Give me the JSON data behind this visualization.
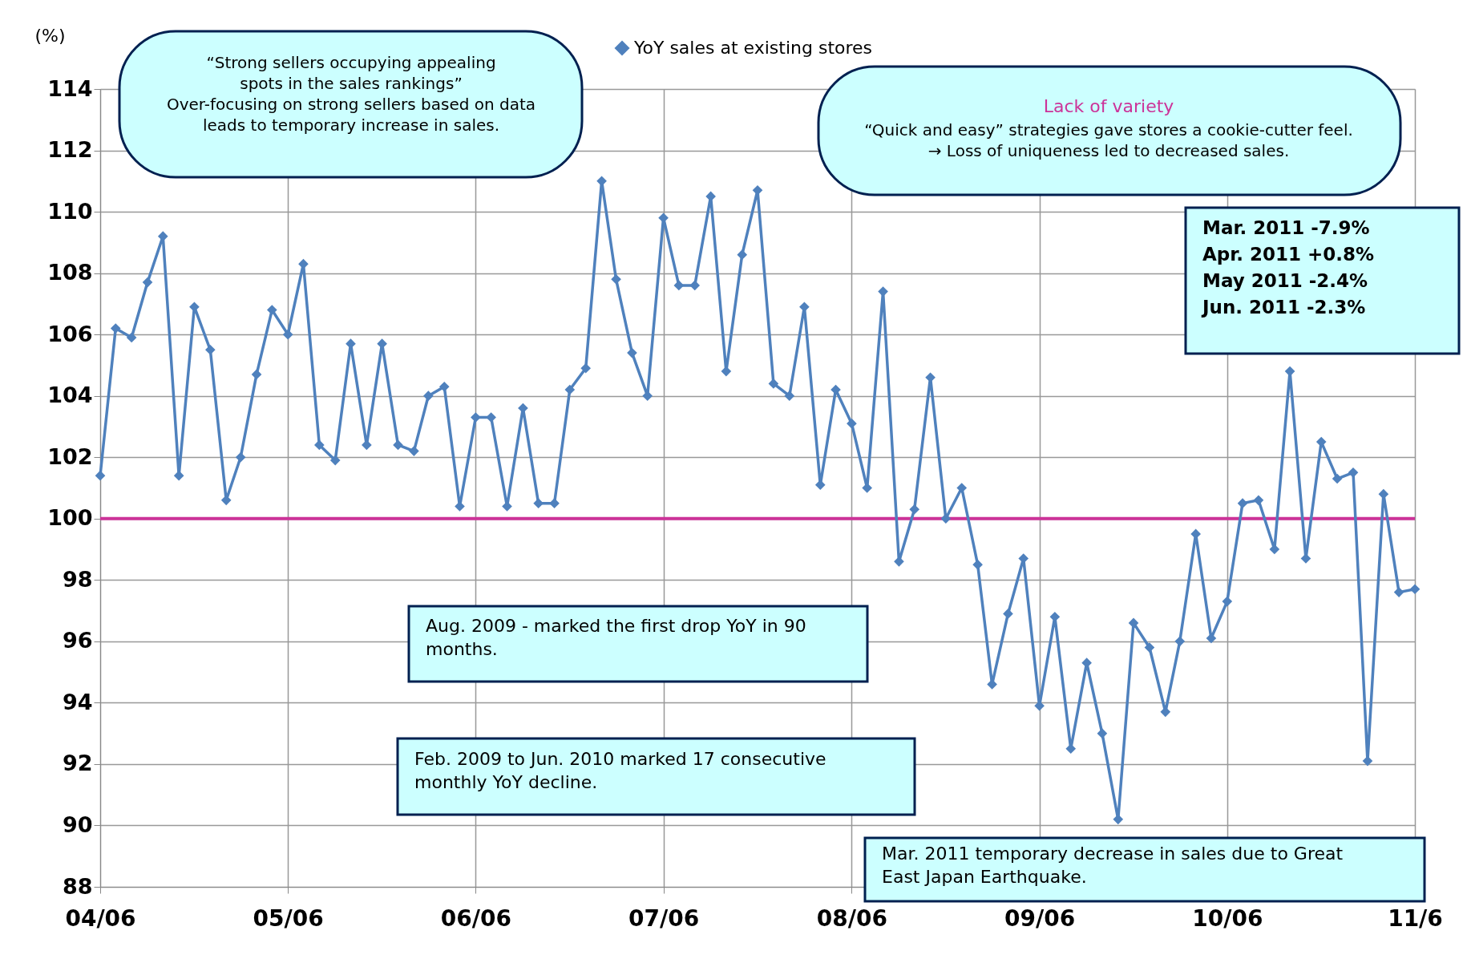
{
  "chart_data": {
    "type": "line",
    "ylabel": "(%)",
    "x": [
      "2004-06",
      "2004-07",
      "2004-08",
      "2004-09",
      "2004-10",
      "2004-11",
      "2004-12",
      "2005-01",
      "2005-02",
      "2005-03",
      "2005-04",
      "2005-05",
      "2005-06",
      "2005-07",
      "2005-08",
      "2005-09",
      "2005-10",
      "2005-11",
      "2005-12",
      "2006-01",
      "2006-02",
      "2006-03",
      "2006-04",
      "2006-05",
      "2006-06",
      "2006-07",
      "2006-08",
      "2006-09",
      "2006-10",
      "2006-11",
      "2006-12",
      "2007-01",
      "2007-02",
      "2007-03",
      "2007-04",
      "2007-05",
      "2007-06",
      "2007-07",
      "2007-08",
      "2007-09",
      "2007-10",
      "2007-11",
      "2007-12",
      "2008-01",
      "2008-02",
      "2008-03",
      "2008-04",
      "2008-05",
      "2008-06",
      "2008-07",
      "2008-08",
      "2008-09",
      "2008-10",
      "2008-11",
      "2008-12",
      "2009-01",
      "2009-02",
      "2009-03",
      "2009-04",
      "2009-05",
      "2009-06",
      "2009-07",
      "2009-08",
      "2009-09",
      "2009-10",
      "2009-11",
      "2009-12",
      "2010-01",
      "2010-02",
      "2010-03",
      "2010-04",
      "2010-05",
      "2010-06",
      "2010-07",
      "2010-08",
      "2010-09",
      "2010-10",
      "2010-11",
      "2010-12",
      "2011-01",
      "2011-02",
      "2011-03",
      "2011-04",
      "2011-05",
      "2011-06"
    ],
    "series": [
      {
        "name": "YoY sales at existing stores",
        "color": "#4f81bd",
        "values": [
          101.4,
          106.2,
          105.9,
          107.7,
          109.2,
          101.4,
          106.9,
          105.5,
          100.6,
          102.0,
          104.7,
          106.8,
          106.0,
          108.3,
          102.4,
          101.9,
          105.7,
          102.4,
          105.7,
          102.4,
          102.2,
          104.0,
          104.3,
          100.4,
          103.3,
          103.3,
          100.4,
          103.6,
          100.5,
          100.5,
          104.2,
          104.9,
          111.0,
          107.8,
          105.4,
          104.0,
          109.8,
          107.6,
          107.6,
          110.5,
          104.8,
          108.6,
          110.7,
          104.4,
          104.0,
          106.9,
          101.1,
          104.2,
          103.1,
          101.0,
          107.4,
          98.6,
          100.3,
          104.6,
          100.0,
          101.0,
          98.5,
          94.6,
          96.9,
          98.7,
          93.9,
          96.8,
          92.5,
          95.3,
          93.0,
          90.2,
          96.6,
          95.8,
          93.7,
          96.0,
          99.5,
          96.1,
          97.3,
          100.5,
          100.6,
          99.0,
          104.8,
          98.7,
          102.5,
          101.3,
          101.5,
          92.1,
          100.8,
          97.6,
          97.7
        ]
      }
    ],
    "ylim": [
      88,
      114
    ],
    "yticks": [
      88,
      90,
      92,
      94,
      96,
      98,
      100,
      102,
      104,
      106,
      108,
      110,
      112,
      114
    ],
    "xlim": [
      "2004-06",
      "2011-06"
    ],
    "xticks": [
      {
        "value": "2004-06",
        "label": "04/06"
      },
      {
        "value": "2005-06",
        "label": "05/06"
      },
      {
        "value": "2006-06",
        "label": "06/06"
      },
      {
        "value": "2007-06",
        "label": "07/06"
      },
      {
        "value": "2008-06",
        "label": "08/06"
      },
      {
        "value": "2009-06",
        "label": "09/06"
      },
      {
        "value": "2010-06",
        "label": "10/06"
      },
      {
        "value": "2011-06",
        "label": "11/6"
      }
    ],
    "ref_lines": [
      {
        "axis": "y",
        "value": 100,
        "color": "#cc3399"
      }
    ],
    "grid": true,
    "legend": "top",
    "marker": "diamond",
    "line_style": "solid",
    "annotations": [
      "“Strong sellers occupying appealing\nspots in the sales rankings”\nOver-focusing on strong sellers based on data\nleads to temporary increase in sales.",
      "Lack of variety",
      "“Quick and easy” strategies gave stores a cookie-cutter feel.\n→ Loss of uniqueness led to decreased sales.",
      "Mar. 2011  -7.9%",
      "Apr. 2011  +0.8%",
      "May 2011  -2.4%",
      "Jun. 2011  -2.3%",
      "Aug. 2009 - marked the first drop YoY in 90\nmonths.",
      "Feb. 2009 to Jun. 2010 marked 17 consecutive\nmonthly YoY decline.",
      "Mar. 2011 temporary decrease in sales due to Great\nEast Japan Earthquake."
    ]
  }
}
